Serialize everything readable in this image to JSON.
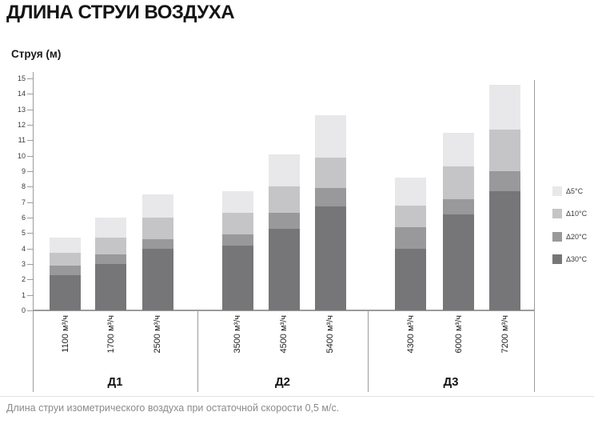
{
  "title": "ДЛИНА СТРУИ ВОЗДУХА",
  "caption": "Длина струи изометрического воздуха при остаточной скорости 0,5 м/с.",
  "colors": {
    "axis": "#9c9c9c",
    "title_text": "#141414",
    "tick_text": "#3a3a3a",
    "caption_text": "#8b8b8b"
  },
  "chart_data": {
    "type": "bar",
    "stacked": true,
    "ylabel": "Струя (м)",
    "ylim": [
      0,
      15
    ],
    "ytick_step": 1,
    "yticks": [
      0,
      1,
      2,
      3,
      4,
      5,
      6,
      7,
      8,
      9,
      10,
      11,
      12,
      13,
      14,
      15
    ],
    "legend_position": "right",
    "grid": false,
    "series": [
      {
        "name": "Δ5°C",
        "color": "#e8e8ea"
      },
      {
        "name": "Δ10°C",
        "color": "#c5c5c7"
      },
      {
        "name": "Δ20°C",
        "color": "#99999b"
      },
      {
        "name": "Δ30°C",
        "color": "#767678"
      }
    ],
    "groups": [
      {
        "label": "Д1",
        "bars": [
          {
            "label": "1100 м³/ч",
            "values": [
              4.7,
              3.7,
              2.9,
              2.3
            ]
          },
          {
            "label": "1700 м³/ч",
            "values": [
              6.0,
              4.7,
              3.6,
              3.0
            ]
          },
          {
            "label": "2500 м³/ч",
            "values": [
              7.5,
              6.0,
              4.6,
              4.0
            ]
          }
        ]
      },
      {
        "label": "Д2",
        "bars": [
          {
            "label": "3500 м³/ч",
            "values": [
              7.7,
              6.3,
              4.9,
              4.2
            ]
          },
          {
            "label": "4500 м³/ч",
            "values": [
              10.1,
              8.0,
              6.3,
              5.3
            ]
          },
          {
            "label": "5400 м³/ч",
            "values": [
              12.6,
              9.9,
              7.9,
              6.7
            ]
          }
        ]
      },
      {
        "label": "Д3",
        "bars": [
          {
            "label": "4300 м³/ч",
            "values": [
              8.6,
              6.8,
              5.4,
              4.0
            ]
          },
          {
            "label": "6000 м³/ч",
            "values": [
              11.5,
              9.3,
              7.2,
              6.2
            ]
          },
          {
            "label": "7200 м³/ч",
            "values": [
              14.6,
              11.7,
              9.0,
              7.7
            ]
          }
        ]
      }
    ]
  }
}
